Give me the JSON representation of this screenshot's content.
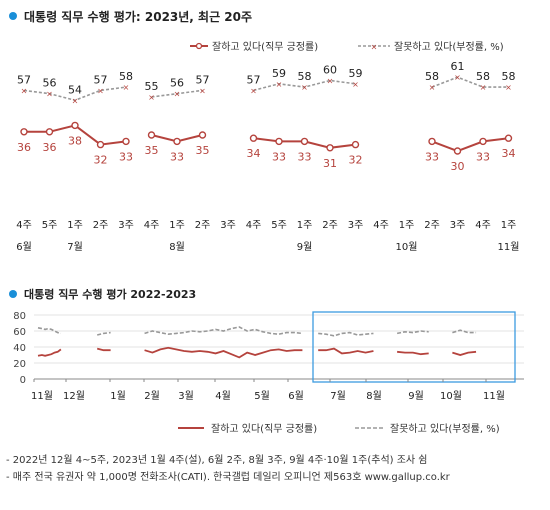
{
  "chart_data": [
    {
      "type": "line",
      "title": "대통령 직무 수행 평가: 2023년, 최근 20주",
      "legend": [
        "잘하고 있다(직무 긍정률)",
        "잘못하고 있다(부정률, %)"
      ],
      "legend_position": "top-right",
      "x_ticks": [
        {
          "week": "4주",
          "month": "6월"
        },
        {
          "week": "5주",
          "month": ""
        },
        {
          "week": "1주",
          "month": "7월"
        },
        {
          "week": "2주",
          "month": ""
        },
        {
          "week": "3주",
          "month": ""
        },
        {
          "week": "4주",
          "month": ""
        },
        {
          "week": "1주",
          "month": "8월"
        },
        {
          "week": "2주",
          "month": ""
        },
        {
          "week": "3주",
          "month": ""
        },
        {
          "week": "4주",
          "month": ""
        },
        {
          "week": "5주",
          "month": ""
        },
        {
          "week": "1주",
          "month": "9월"
        },
        {
          "week": "2주",
          "month": ""
        },
        {
          "week": "3주",
          "month": ""
        },
        {
          "week": "4주",
          "month": ""
        },
        {
          "week": "1주",
          "month": "10월"
        },
        {
          "week": "2주",
          "month": ""
        },
        {
          "week": "3주",
          "month": ""
        },
        {
          "week": "4주",
          "month": ""
        },
        {
          "week": "1주",
          "month": "11월"
        }
      ],
      "series": [
        {
          "name": "잘하고 있다(직무 긍정률)",
          "color": "#b5433d",
          "values": [
            36,
            36,
            38,
            32,
            33,
            null,
            35,
            33,
            35,
            null,
            34,
            33,
            33,
            31,
            32,
            null,
            null,
            33,
            30,
            33,
            34
          ]
        },
        {
          "name": "잘못하고 있다(부정률, %)",
          "color": "#b5433d",
          "values": [
            57,
            56,
            54,
            57,
            58,
            null,
            55,
            56,
            57,
            null,
            57,
            59,
            58,
            60,
            59,
            null,
            null,
            58,
            61,
            58,
            58
          ]
        }
      ],
      "x_positions": [
        0,
        1,
        2,
        3,
        4,
        null,
        5,
        6,
        7,
        null,
        9,
        10,
        11,
        12,
        13,
        null,
        null,
        16,
        17,
        18,
        19
      ],
      "ylim": [
        20,
        70
      ]
    },
    {
      "type": "line",
      "title": "대통령 직무 수행 평가 2022-2023",
      "yticks": [
        0,
        20,
        40,
        60,
        80
      ],
      "ylim": [
        0,
        80
      ],
      "x_tick_labels": [
        "11월",
        "12월",
        "1월",
        "2월",
        "3월",
        "4월",
        "5월",
        "6월",
        "7월",
        "8월",
        "9월",
        "10월",
        "11월"
      ],
      "x_range": [
        "2022-11",
        "2023-11"
      ],
      "highlight_range": [
        "2023-06-20",
        "2023-11-05"
      ],
      "legend": [
        "잘하고 있다(직무 긍정률)",
        "잘못하고 있다(부정률, %)"
      ],
      "legend_position": "bottom-right",
      "series": [
        {
          "name": "잘하고 있다(직무 긍정률)",
          "color": "#b5433d",
          "segments": [
            [
              [
                0.0,
                29
              ],
              [
                0.05,
                30
              ],
              [
                0.09,
                29
              ],
              [
                0.13,
                30
              ],
              [
                0.17,
                31
              ],
              [
                0.21,
                33
              ],
              [
                0.25,
                34
              ],
              [
                0.29,
                37
              ]
            ],
            [
              [
                0.75,
                38
              ],
              [
                0.83,
                36
              ],
              [
                0.92,
                36
              ]
            ],
            [
              [
                1.35,
                36
              ],
              [
                1.45,
                33
              ],
              [
                1.55,
                37
              ],
              [
                1.65,
                39
              ],
              [
                1.75,
                37
              ],
              [
                1.85,
                35
              ],
              [
                1.95,
                34
              ],
              [
                2.05,
                35
              ],
              [
                2.15,
                34
              ],
              [
                2.25,
                32
              ],
              [
                2.35,
                35
              ],
              [
                2.45,
                31
              ],
              [
                2.55,
                27
              ],
              [
                2.65,
                33
              ],
              [
                2.75,
                30
              ],
              [
                2.85,
                33
              ],
              [
                2.95,
                36
              ],
              [
                3.05,
                37
              ],
              [
                3.15,
                35
              ],
              [
                3.25,
                36
              ],
              [
                3.35,
                36
              ]
            ],
            [
              [
                3.55,
                36
              ],
              [
                3.65,
                36
              ],
              [
                3.75,
                38
              ],
              [
                3.85,
                32
              ],
              [
                3.95,
                33
              ],
              [
                4.05,
                35
              ],
              [
                4.15,
                33
              ],
              [
                4.25,
                35
              ]
            ],
            [
              [
                4.55,
                34
              ],
              [
                4.65,
                33
              ],
              [
                4.75,
                33
              ],
              [
                4.85,
                31
              ],
              [
                4.95,
                32
              ]
            ],
            [
              [
                5.25,
                33
              ],
              [
                5.35,
                30
              ],
              [
                5.45,
                33
              ],
              [
                5.55,
                34
              ]
            ]
          ]
        },
        {
          "name": "잘못하고 있다(부정률, %)",
          "color": "#999999",
          "segments": [
            [
              [
                0.0,
                64
              ],
              [
                0.05,
                63
              ],
              [
                0.09,
                62
              ],
              [
                0.13,
                63
              ],
              [
                0.17,
                62
              ],
              [
                0.21,
                60
              ],
              [
                0.25,
                58
              ],
              [
                0.29,
                57
              ]
            ],
            [
              [
                0.75,
                55
              ],
              [
                0.83,
                57
              ],
              [
                0.92,
                58
              ]
            ],
            [
              [
                1.35,
                57
              ],
              [
                1.45,
                60
              ],
              [
                1.55,
                58
              ],
              [
                1.65,
                56
              ],
              [
                1.75,
                57
              ],
              [
                1.85,
                58
              ],
              [
                1.95,
                60
              ],
              [
                2.05,
                59
              ],
              [
                2.15,
                60
              ],
              [
                2.25,
                62
              ],
              [
                2.35,
                60
              ],
              [
                2.45,
                63
              ],
              [
                2.55,
                65
              ],
              [
                2.65,
                60
              ],
              [
                2.75,
                62
              ],
              [
                2.85,
                59
              ],
              [
                2.95,
                57
              ],
              [
                3.05,
                56
              ],
              [
                3.15,
                58
              ],
              [
                3.25,
                58
              ],
              [
                3.35,
                57
              ]
            ],
            [
              [
                3.55,
                57
              ],
              [
                3.65,
                56
              ],
              [
                3.75,
                54
              ],
              [
                3.85,
                57
              ],
              [
                3.95,
                58
              ],
              [
                4.05,
                55
              ],
              [
                4.15,
                56
              ],
              [
                4.25,
                57
              ]
            ],
            [
              [
                4.55,
                57
              ],
              [
                4.65,
                59
              ],
              [
                4.75,
                58
              ],
              [
                4.85,
                60
              ],
              [
                4.95,
                59
              ]
            ],
            [
              [
                5.25,
                58
              ],
              [
                5.35,
                61
              ],
              [
                5.45,
                58
              ],
              [
                5.55,
                58
              ]
            ]
          ]
        }
      ]
    }
  ],
  "notes": [
    "- 2022년 12월 4~5주, 2023년 1월 4주(설), 6월 2주, 8월 3주, 9월 4주·10월 1주(추석) 조사 쉼",
    "- 매주 전국 유권자 약 1,000명 전화조사(CATI). 한국갤럽 데일리 오피니언 제563호 www.gallup.co.kr"
  ]
}
